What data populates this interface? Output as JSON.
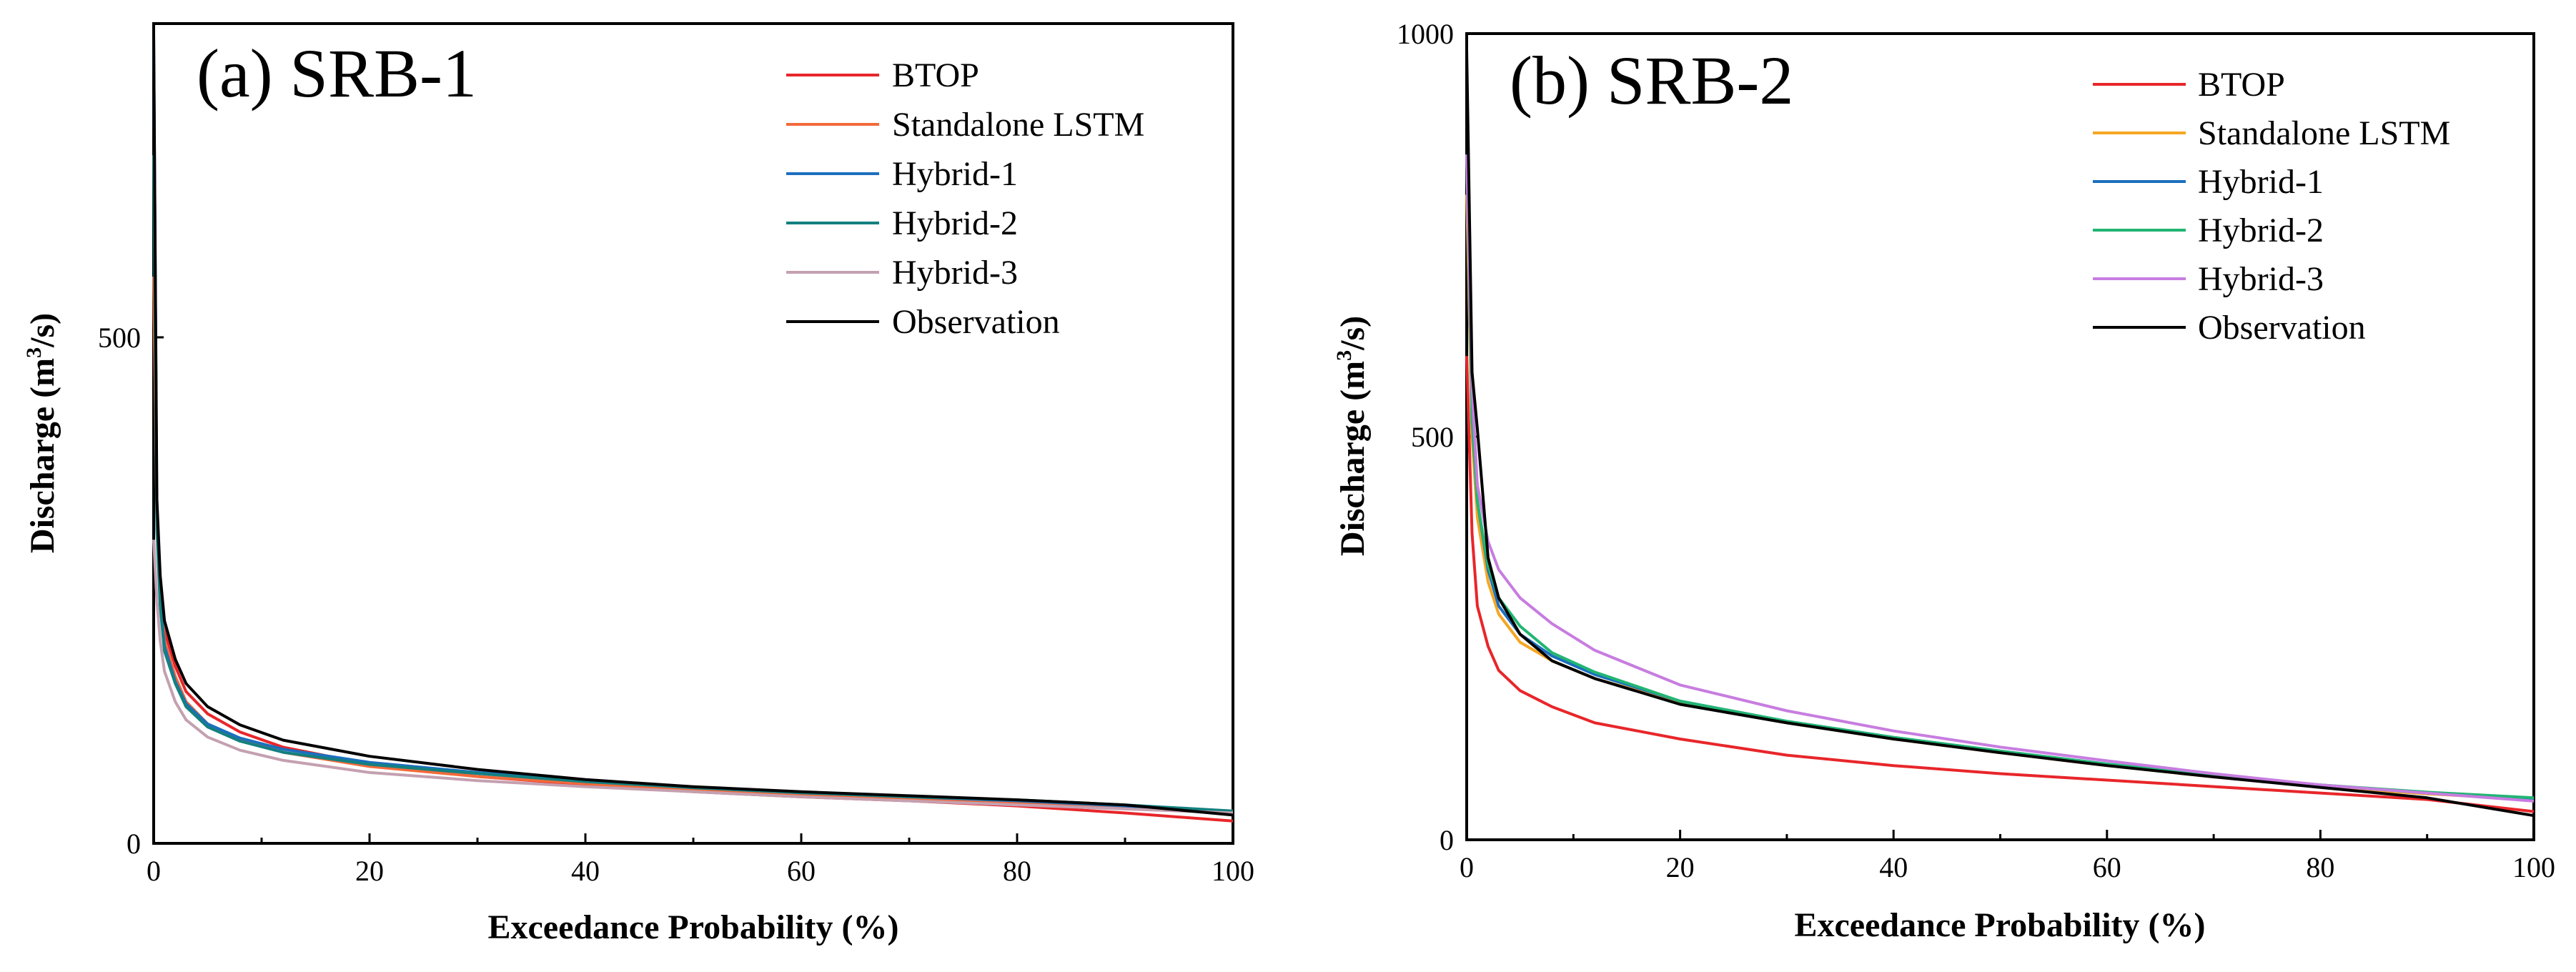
{
  "chart_data": [
    {
      "type": "line",
      "panel_title": "(a) SRB-1",
      "xlabel": "Exceedance Probability (%)",
      "ylabel_main": "Discharge (m",
      "ylabel_sup": "3",
      "ylabel_tail": "/s)",
      "xlim": [
        0,
        100
      ],
      "ylim": [
        0,
        810
      ],
      "xticks": [
        0,
        20,
        40,
        60,
        80,
        100
      ],
      "yticks": [
        0,
        500
      ],
      "legend_position": "top-right",
      "grid": false,
      "series": [
        {
          "name": "BTOP",
          "color": "#e8262a",
          "x": [
            0,
            0.3,
            0.6,
            1,
            2,
            3,
            5,
            8,
            12,
            20,
            30,
            40,
            50,
            60,
            70,
            80,
            90,
            100
          ],
          "y": [
            560,
            330,
            260,
            210,
            175,
            150,
            128,
            110,
            95,
            78,
            66,
            58,
            51,
            46,
            42,
            37,
            30,
            22
          ]
        },
        {
          "name": "Standalone LSTM",
          "color": "#f26a3a",
          "x": [
            0,
            0.3,
            0.6,
            1,
            2,
            3,
            5,
            8,
            12,
            20,
            30,
            40,
            50,
            60,
            70,
            80,
            90,
            100
          ],
          "y": [
            560,
            320,
            250,
            200,
            165,
            140,
            118,
            102,
            90,
            76,
            66,
            59,
            53,
            48,
            44,
            40,
            36,
            32
          ]
        },
        {
          "name": "Hybrid-1",
          "color": "#1c6fbd",
          "x": [
            0,
            0.3,
            0.6,
            1,
            2,
            3,
            5,
            8,
            12,
            20,
            30,
            40,
            50,
            60,
            70,
            80,
            90,
            100
          ],
          "y": [
            800,
            320,
            240,
            195,
            160,
            138,
            118,
            104,
            93,
            80,
            70,
            62,
            55,
            50,
            46,
            42,
            37,
            30
          ]
        },
        {
          "name": "Hybrid-2",
          "color": "#138080",
          "x": [
            0,
            0.3,
            0.6,
            1,
            2,
            3,
            5,
            8,
            12,
            20,
            30,
            40,
            50,
            60,
            70,
            80,
            90,
            100
          ],
          "y": [
            680,
            310,
            235,
            190,
            158,
            135,
            115,
            101,
            90,
            78,
            69,
            61,
            55,
            50,
            46,
            43,
            38,
            32
          ]
        },
        {
          "name": "Hybrid-3",
          "color": "#c4a0b0",
          "x": [
            0,
            0.3,
            0.6,
            1,
            2,
            3,
            5,
            8,
            12,
            20,
            30,
            40,
            50,
            60,
            70,
            80,
            90,
            100
          ],
          "y": [
            300,
            240,
            200,
            170,
            140,
            122,
            105,
            92,
            82,
            70,
            62,
            56,
            51,
            46,
            42,
            38,
            34,
            30
          ]
        },
        {
          "name": "Observation",
          "color": "#000000",
          "x": [
            0,
            0.3,
            0.6,
            1,
            2,
            3,
            5,
            8,
            12,
            20,
            30,
            40,
            50,
            60,
            70,
            80,
            90,
            100
          ],
          "y": [
            800,
            340,
            265,
            220,
            182,
            158,
            135,
            117,
            102,
            86,
            73,
            63,
            56,
            51,
            47,
            43,
            38,
            28
          ]
        }
      ]
    },
    {
      "type": "line",
      "panel_title": "(b) SRB-2",
      "xlabel": "Exceedance Probability (%)",
      "ylabel_main": "Discharge (m",
      "ylabel_sup": "3",
      "ylabel_tail": "/s)",
      "xlim": [
        0,
        100
      ],
      "ylim": [
        0,
        1000
      ],
      "xticks": [
        0,
        20,
        40,
        60,
        80,
        100
      ],
      "yticks": [
        0,
        500,
        1000
      ],
      "legend_position": "top-right",
      "grid": false,
      "series": [
        {
          "name": "BTOP",
          "color": "#e8262a",
          "x": [
            0,
            0.5,
            1,
            2,
            3,
            5,
            8,
            12,
            20,
            30,
            40,
            50,
            60,
            70,
            80,
            90,
            100
          ],
          "y": [
            600,
            380,
            290,
            240,
            210,
            185,
            165,
            145,
            125,
            105,
            92,
            82,
            74,
            66,
            58,
            50,
            35
          ]
        },
        {
          "name": "Standalone LSTM",
          "color": "#f5a623",
          "x": [
            0,
            0.5,
            1,
            2,
            3,
            5,
            8,
            12,
            20,
            30,
            40,
            50,
            60,
            70,
            80,
            90,
            100
          ],
          "y": [
            800,
            500,
            400,
            320,
            280,
            245,
            222,
            200,
            170,
            145,
            125,
            108,
            92,
            78,
            66,
            57,
            50
          ]
        },
        {
          "name": "Hybrid-1",
          "color": "#1c6fbd",
          "x": [
            0,
            0.5,
            1,
            2,
            3,
            5,
            8,
            12,
            20,
            30,
            40,
            50,
            60,
            70,
            80,
            90,
            100
          ],
          "y": [
            850,
            520,
            420,
            335,
            290,
            255,
            228,
            205,
            172,
            147,
            127,
            110,
            94,
            80,
            68,
            58,
            50
          ]
        },
        {
          "name": "Hybrid-2",
          "color": "#22b573",
          "x": [
            0,
            0.5,
            1,
            2,
            3,
            5,
            8,
            12,
            20,
            30,
            40,
            50,
            60,
            70,
            80,
            90,
            100
          ],
          "y": [
            850,
            520,
            420,
            340,
            300,
            265,
            232,
            208,
            172,
            147,
            127,
            110,
            94,
            80,
            68,
            59,
            52
          ]
        },
        {
          "name": "Hybrid-3",
          "color": "#c77de0",
          "x": [
            0,
            0.5,
            1,
            2,
            3,
            5,
            8,
            12,
            20,
            30,
            40,
            50,
            60,
            70,
            80,
            90,
            100
          ],
          "y": [
            850,
            560,
            440,
            370,
            335,
            300,
            268,
            235,
            192,
            160,
            135,
            115,
            98,
            82,
            68,
            58,
            48
          ]
        },
        {
          "name": "Observation",
          "color": "#000000",
          "x": [
            0,
            0.5,
            1,
            2,
            3,
            5,
            8,
            12,
            20,
            30,
            40,
            50,
            60,
            70,
            80,
            90,
            100
          ],
          "y": [
            980,
            580,
            510,
            350,
            300,
            255,
            222,
            200,
            168,
            145,
            125,
            108,
            92,
            78,
            65,
            52,
            30
          ]
        }
      ]
    }
  ]
}
